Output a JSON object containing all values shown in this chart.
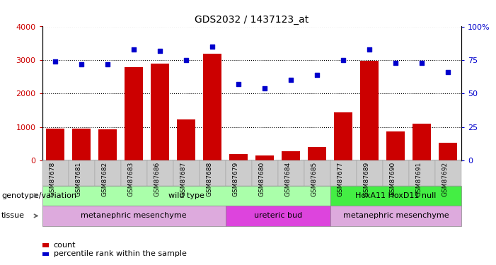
{
  "title": "GDS2032 / 1437123_at",
  "samples": [
    "GSM87678",
    "GSM87681",
    "GSM87682",
    "GSM87683",
    "GSM87686",
    "GSM87687",
    "GSM87688",
    "GSM87679",
    "GSM87680",
    "GSM87684",
    "GSM87685",
    "GSM87677",
    "GSM87689",
    "GSM87690",
    "GSM87691",
    "GSM87692"
  ],
  "counts": [
    950,
    950,
    930,
    2780,
    2900,
    1230,
    3180,
    180,
    150,
    280,
    390,
    1430,
    2970,
    870,
    1100,
    530
  ],
  "percentiles": [
    74,
    72,
    72,
    83,
    82,
    75,
    85,
    57,
    54,
    60,
    64,
    75,
    83,
    73,
    73,
    66
  ],
  "ylim_left": [
    0,
    4000
  ],
  "ylim_right": [
    0,
    100
  ],
  "yticks_left": [
    0,
    1000,
    2000,
    3000,
    4000
  ],
  "yticks_right": [
    0,
    25,
    50,
    75,
    100
  ],
  "bar_color": "#cc0000",
  "dot_color": "#0000cc",
  "grid_color": "#000000",
  "genotype_groups": [
    {
      "label": "wild type",
      "start": 0,
      "end": 10,
      "color": "#aaffaa"
    },
    {
      "label": "HoxA11 HoxD11 null",
      "start": 11,
      "end": 15,
      "color": "#44ee44"
    }
  ],
  "tissue_groups": [
    {
      "label": "metanephric mesenchyme",
      "start": 0,
      "end": 6,
      "color": "#ddaadd"
    },
    {
      "label": "ureteric bud",
      "start": 7,
      "end": 10,
      "color": "#dd44dd"
    },
    {
      "label": "metanephric mesenchyme",
      "start": 11,
      "end": 15,
      "color": "#ddaadd"
    }
  ],
  "legend_count_color": "#cc0000",
  "legend_pct_color": "#0000cc",
  "xlabel_genotype": "genotype/variation",
  "xlabel_tissue": "tissue",
  "tick_label_color_left": "#cc0000",
  "tick_label_color_right": "#0000cc"
}
